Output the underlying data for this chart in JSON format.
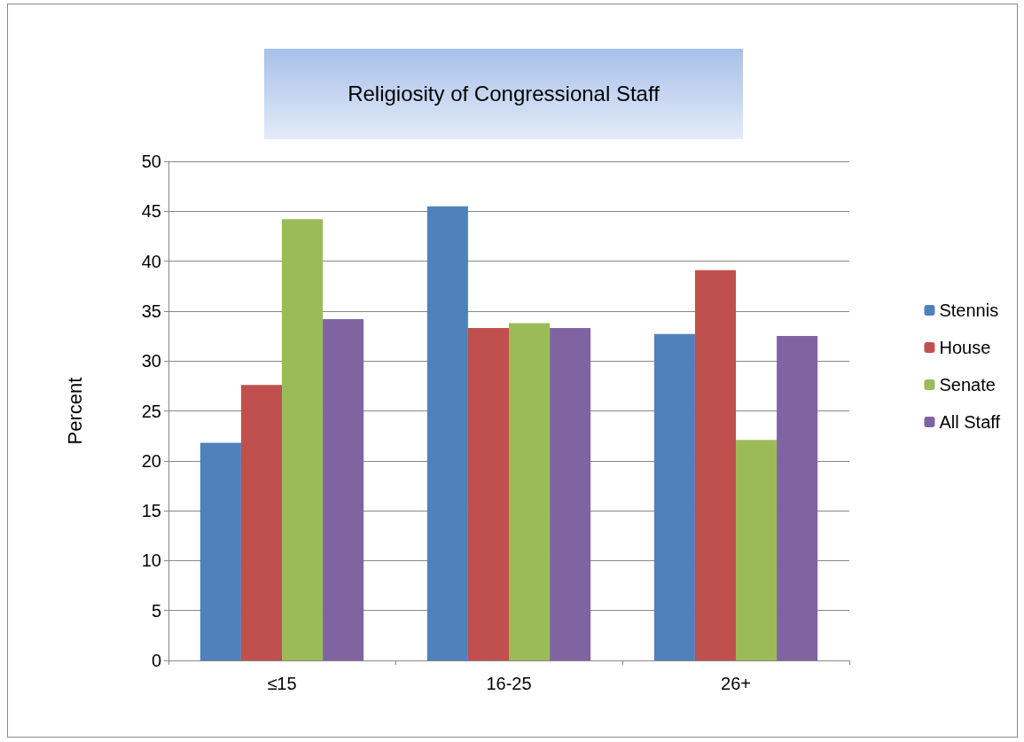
{
  "chart_data": {
    "type": "bar",
    "title": "Religiosity of Congressional Staff",
    "ylabel": "Percent",
    "categories": [
      "≤15",
      "16-25",
      "26+"
    ],
    "series": [
      {
        "name": "Stennis",
        "color": "#4f81bd",
        "values": [
          21.8,
          45.5,
          32.7
        ]
      },
      {
        "name": "House",
        "color": "#c0504d",
        "values": [
          27.6,
          33.3,
          39.1
        ]
      },
      {
        "name": "Senate",
        "color": "#9bbb59",
        "values": [
          44.2,
          33.8,
          22.1
        ]
      },
      {
        "name": "All Staff",
        "color": "#8064a2",
        "values": [
          34.2,
          33.3,
          32.5
        ]
      }
    ],
    "ylim": [
      0,
      50
    ],
    "yticks": [
      0,
      5,
      10,
      15,
      20,
      25,
      30,
      35,
      40,
      45,
      50
    ],
    "grid": "y",
    "legend": "right"
  }
}
